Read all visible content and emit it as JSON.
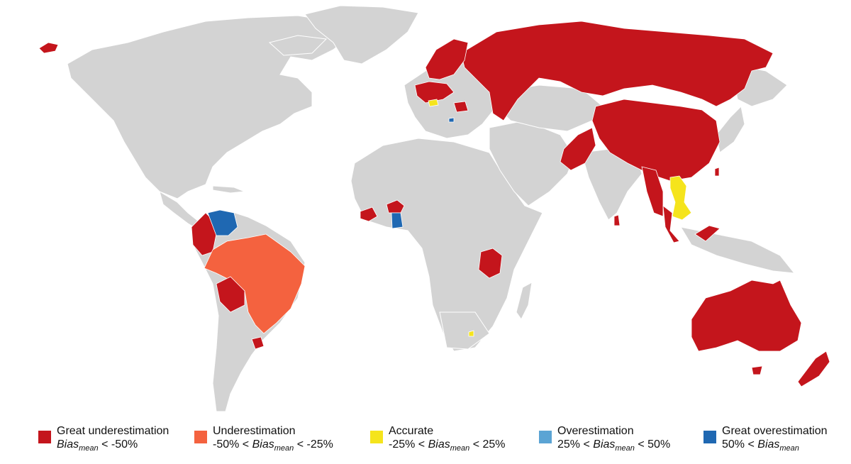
{
  "colors": {
    "background": "#ffffff",
    "no_data": "#d3d3d3",
    "ocean": "#ffffff"
  },
  "legend": [
    {
      "label": "Great underestimation",
      "condition_pre": "",
      "condition_post": " < -50%",
      "color": "#c4151c",
      "category": "great-underestimation"
    },
    {
      "label": "Underestimation",
      "condition_pre": "-50% < ",
      "condition_post": " < -25%",
      "color": "#f4623f",
      "category": "underestimation"
    },
    {
      "label": "Accurate",
      "condition_pre": "-25% < ",
      "condition_post": " < 25%",
      "color": "#f5e41c",
      "category": "accurate"
    },
    {
      "label": "Overestimation",
      "condition_pre": "25% < ",
      "condition_post": " < 50%",
      "color": "#5ba4d4",
      "category": "overestimation"
    },
    {
      "label": "Great overestimation",
      "condition_pre": "50% < ",
      "condition_post": "",
      "color": "#1f68b2",
      "category": "great-overestimation"
    }
  ],
  "bias_symbol": "Bias",
  "bias_subscript": "mean",
  "regions": {
    "great-underestimation": [
      "Russia",
      "China",
      "Pakistan",
      "Myanmar",
      "Malaysia",
      "Sri Lanka",
      "Taiwan",
      "Australia",
      "New Zealand",
      "Iceland",
      "Norway",
      "Sweden",
      "Finland",
      "Germany",
      "Poland",
      "Romania",
      "Colombia",
      "Bolivia",
      "Uruguay",
      "Guinea",
      "Burkina Faso",
      "Tanzania"
    ],
    "underestimation": [
      "Brazil"
    ],
    "accurate": [
      "Hungary",
      "Vietnam",
      "Cambodia",
      "Laos",
      "Lesotho"
    ],
    "overestimation": [],
    "great-overestimation": [
      "Venezuela",
      "Ghana",
      "North Macedonia"
    ]
  }
}
